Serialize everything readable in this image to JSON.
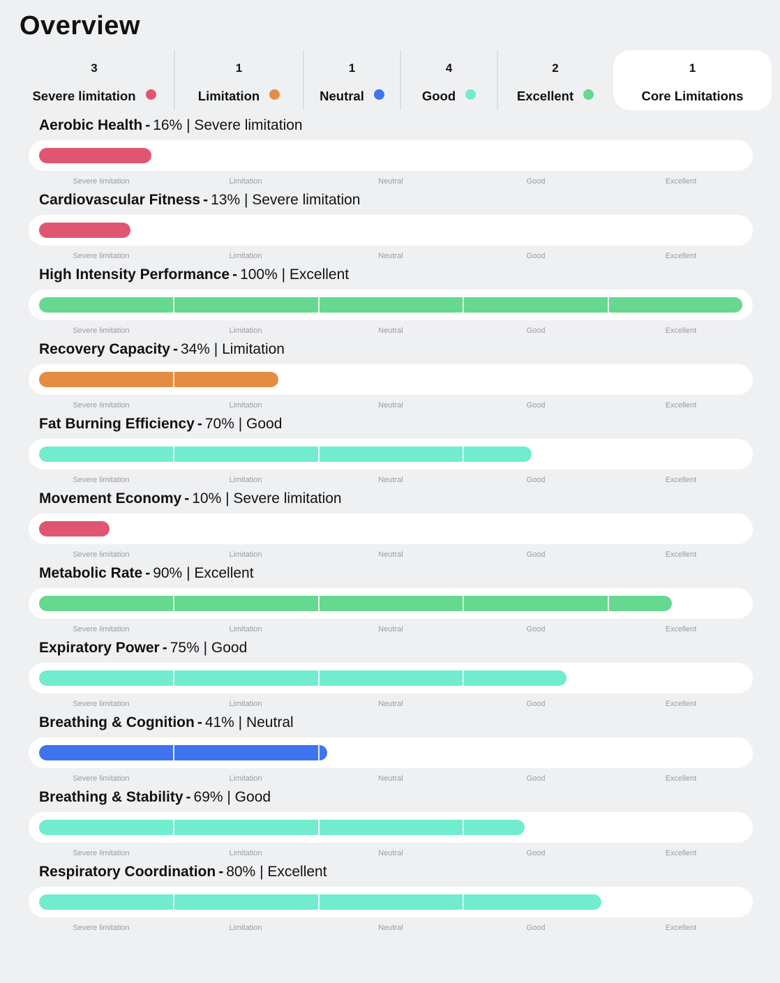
{
  "page": {
    "title": "Overview"
  },
  "colors": {
    "severe": "#e05672",
    "limitation": "#e48d42",
    "neutral": "#3f74ee",
    "good": "#72ecce",
    "excellent": "#66d88f"
  },
  "summary": [
    {
      "count": "3",
      "label": "Severe limitation",
      "color": "#e05672"
    },
    {
      "count": "1",
      "label": "Limitation",
      "color": "#e48d42"
    },
    {
      "count": "1",
      "label": "Neutral",
      "color": "#3f74ee"
    },
    {
      "count": "4",
      "label": "Good",
      "color": "#72ecce"
    },
    {
      "count": "2",
      "label": "Excellent",
      "color": "#66d88f"
    },
    {
      "count": "1",
      "label": "Core Limitations",
      "color": null,
      "selected": true
    }
  ],
  "scale_labels": [
    "Severe limitation",
    "Limitation",
    "Neutral",
    "Good",
    "Excellent"
  ],
  "metrics": [
    {
      "name": "Aerobic Health",
      "value": "16% | Severe limitation",
      "percent": 16,
      "color": "#e05672"
    },
    {
      "name": "Cardiovascular Fitness",
      "value": "13% | Severe limitation",
      "percent": 13,
      "color": "#e05672"
    },
    {
      "name": "High Intensity Performance",
      "value": "100% | Excellent",
      "percent": 100,
      "color": "#66d88f"
    },
    {
      "name": "Recovery Capacity",
      "value": "34% | Limitation",
      "percent": 34,
      "color": "#e48d42"
    },
    {
      "name": "Fat Burning Efficiency",
      "value": "70% | Good",
      "percent": 70,
      "color": "#72ecce"
    },
    {
      "name": "Movement Economy",
      "value": "10% | Severe limitation",
      "percent": 10,
      "color": "#e05672"
    },
    {
      "name": "Metabolic Rate",
      "value": "90% | Excellent",
      "percent": 90,
      "color": "#66d88f"
    },
    {
      "name": "Expiratory Power",
      "value": "75% | Good",
      "percent": 75,
      "color": "#72ecce"
    },
    {
      "name": "Breathing & Cognition",
      "value": "41% | Neutral",
      "percent": 41,
      "color": "#3f74ee"
    },
    {
      "name": "Breathing & Stability",
      "value": "69% | Good",
      "percent": 69,
      "color": "#72ecce"
    },
    {
      "name": "Respiratory Coordination",
      "value": "80% | Excellent",
      "percent": 80,
      "color": "#72ecce"
    }
  ]
}
